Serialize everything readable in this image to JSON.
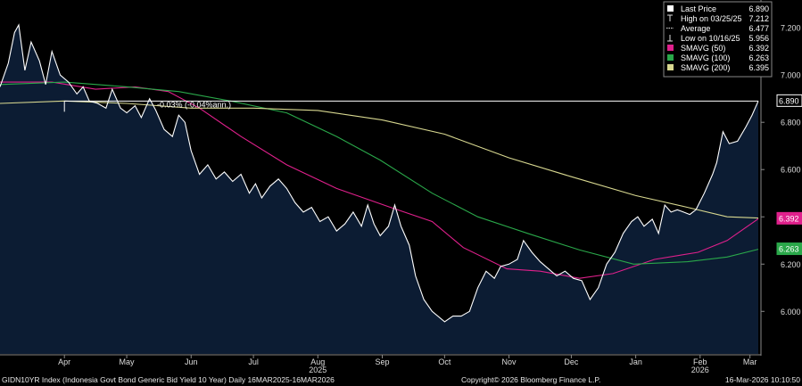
{
  "footer": {
    "left": "GIDN10YR Index (Indonesia Govt Bond Generic Bid Yield 10 Year) Daily 16MAR2025-16MAR2026",
    "center": "Copyright© 2026 Bloomberg Finance L.P.",
    "right": "16-Mar-2026 10:10:50"
  },
  "colors": {
    "background": "#000000",
    "area_fill": "#0c1c33",
    "price_line": "#ffffff",
    "sma50": "#e0208c",
    "sma100": "#2aa84a",
    "sma200": "#d8d890",
    "axis_text": "#dddddd",
    "panel_border": "#888888"
  },
  "legend": {
    "items": [
      {
        "icon": "square-white-icon",
        "label": "Last Price",
        "value": "6.890"
      },
      {
        "icon": "high-marker-icon",
        "label": "High on 03/25/25",
        "value": "7.212"
      },
      {
        "icon": "average-line-icon",
        "label": "Average",
        "value": "6.477"
      },
      {
        "icon": "low-marker-icon",
        "label": "Low on 10/16/25",
        "value": "5.956"
      },
      {
        "icon": "square-magenta-icon",
        "label": "SMAVG (50)",
        "value": "6.392"
      },
      {
        "icon": "square-green-icon",
        "label": "SMAVG (100)",
        "value": "6.263"
      },
      {
        "icon": "square-yellow-icon",
        "label": "SMAVG (200)",
        "value": "6.395"
      }
    ]
  },
  "annotation": {
    "text": "-0.03% (-0.04%ann.)"
  },
  "chart_data": {
    "type": "line",
    "title": "",
    "xlabel": "",
    "ylabel": "",
    "x_range": [
      "2025-03-16",
      "2026-03-16"
    ],
    "ylim": [
      5.82,
      7.31
    ],
    "y_ticks": [
      6.0,
      6.2,
      6.4,
      6.6,
      6.8,
      7.0,
      7.2
    ],
    "y_tick_labels": [
      "6.000",
      "6.200",
      "6.400",
      "6.600",
      "6.800",
      "7.000",
      "7.200"
    ],
    "x_ticks": [
      {
        "date": "2025-04-16",
        "label": "Apr"
      },
      {
        "date": "2025-05-16",
        "label": "May"
      },
      {
        "date": "2025-06-16",
        "label": "Jun"
      },
      {
        "date": "2025-07-16",
        "label": "Jul"
      },
      {
        "date": "2025-08-16",
        "label": "Aug"
      },
      {
        "date": "2025-09-16",
        "label": "Sep"
      },
      {
        "date": "2025-10-16",
        "label": "Oct"
      },
      {
        "date": "2025-11-16",
        "label": "Nov"
      },
      {
        "date": "2025-12-16",
        "label": "Dec"
      },
      {
        "date": "2026-01-16",
        "label": "Jan"
      },
      {
        "date": "2026-02-16",
        "label": "Feb"
      },
      {
        "date": "2026-03-12",
        "label": "Mar"
      }
    ],
    "year_labels": [
      {
        "date": "2025-08-16",
        "label": "2025"
      },
      {
        "date": "2026-02-16",
        "label": "2026"
      }
    ],
    "grid": false,
    "legend_position": "top-right",
    "right_axis_value_labels": [
      {
        "value": 6.89,
        "label": "6.890",
        "series": "Last Price"
      },
      {
        "value": 6.392,
        "label": "6.392",
        "series": "SMAVG (50)"
      },
      {
        "value": 6.263,
        "label": "6.263",
        "series": "SMAVG (100)"
      }
    ],
    "reference_line": {
      "from_date": "2025-04-16",
      "to_date": "2026-03-16",
      "value": 6.89
    },
    "series": [
      {
        "name": "Last Price",
        "style": "area",
        "points": [
          [
            "2025-03-16",
            6.95
          ],
          [
            "2025-03-20",
            7.05
          ],
          [
            "2025-03-23",
            7.18
          ],
          [
            "2025-03-25",
            7.212
          ],
          [
            "2025-03-28",
            7.02
          ],
          [
            "2025-03-31",
            7.14
          ],
          [
            "2025-04-04",
            7.06
          ],
          [
            "2025-04-07",
            6.96
          ],
          [
            "2025-04-10",
            7.1
          ],
          [
            "2025-04-14",
            7.0
          ],
          [
            "2025-04-18",
            6.97
          ],
          [
            "2025-04-22",
            6.92
          ],
          [
            "2025-04-25",
            6.95
          ],
          [
            "2025-04-28",
            6.89
          ],
          [
            "2025-05-02",
            6.88
          ],
          [
            "2025-05-06",
            6.86
          ],
          [
            "2025-05-09",
            6.94
          ],
          [
            "2025-05-13",
            6.86
          ],
          [
            "2025-05-16",
            6.84
          ],
          [
            "2025-05-20",
            6.87
          ],
          [
            "2025-05-23",
            6.82
          ],
          [
            "2025-05-27",
            6.9
          ],
          [
            "2025-05-30",
            6.85
          ],
          [
            "2025-06-03",
            6.77
          ],
          [
            "2025-06-07",
            6.74
          ],
          [
            "2025-06-10",
            6.83
          ],
          [
            "2025-06-13",
            6.8
          ],
          [
            "2025-06-16",
            6.68
          ],
          [
            "2025-06-20",
            6.58
          ],
          [
            "2025-06-24",
            6.62
          ],
          [
            "2025-06-28",
            6.56
          ],
          [
            "2025-07-02",
            6.59
          ],
          [
            "2025-07-06",
            6.55
          ],
          [
            "2025-07-10",
            6.58
          ],
          [
            "2025-07-14",
            6.5
          ],
          [
            "2025-07-17",
            6.54
          ],
          [
            "2025-07-20",
            6.48
          ],
          [
            "2025-07-24",
            6.53
          ],
          [
            "2025-07-28",
            6.56
          ],
          [
            "2025-08-01",
            6.52
          ],
          [
            "2025-08-05",
            6.46
          ],
          [
            "2025-08-09",
            6.42
          ],
          [
            "2025-08-13",
            6.44
          ],
          [
            "2025-08-17",
            6.38
          ],
          [
            "2025-08-21",
            6.4
          ],
          [
            "2025-08-25",
            6.34
          ],
          [
            "2025-08-29",
            6.37
          ],
          [
            "2025-09-02",
            6.42
          ],
          [
            "2025-09-06",
            6.36
          ],
          [
            "2025-09-09",
            6.45
          ],
          [
            "2025-09-12",
            6.37
          ],
          [
            "2025-09-15",
            6.32
          ],
          [
            "2025-09-19",
            6.36
          ],
          [
            "2025-09-22",
            6.45
          ],
          [
            "2025-09-25",
            6.36
          ],
          [
            "2025-09-29",
            6.28
          ],
          [
            "2025-10-02",
            6.15
          ],
          [
            "2025-10-06",
            6.05
          ],
          [
            "2025-10-10",
            6.0
          ],
          [
            "2025-10-16",
            5.956
          ],
          [
            "2025-10-20",
            5.98
          ],
          [
            "2025-10-24",
            5.98
          ],
          [
            "2025-10-28",
            6.0
          ],
          [
            "2025-11-01",
            6.1
          ],
          [
            "2025-11-05",
            6.17
          ],
          [
            "2025-11-09",
            6.14
          ],
          [
            "2025-11-12",
            6.19
          ],
          [
            "2025-11-16",
            6.2
          ],
          [
            "2025-11-20",
            6.22
          ],
          [
            "2025-11-23",
            6.3
          ],
          [
            "2025-11-27",
            6.25
          ],
          [
            "2025-12-01",
            6.21
          ],
          [
            "2025-12-05",
            6.18
          ],
          [
            "2025-12-09",
            6.15
          ],
          [
            "2025-12-13",
            6.17
          ],
          [
            "2025-12-17",
            6.14
          ],
          [
            "2025-12-21",
            6.13
          ],
          [
            "2025-12-25",
            6.05
          ],
          [
            "2025-12-29",
            6.1
          ],
          [
            "2026-01-02",
            6.2
          ],
          [
            "2026-01-06",
            6.25
          ],
          [
            "2026-01-10",
            6.33
          ],
          [
            "2026-01-14",
            6.38
          ],
          [
            "2026-01-17",
            6.4
          ],
          [
            "2026-01-20",
            6.36
          ],
          [
            "2026-01-24",
            6.39
          ],
          [
            "2026-01-27",
            6.33
          ],
          [
            "2026-01-30",
            6.45
          ],
          [
            "2026-02-02",
            6.42
          ],
          [
            "2026-02-05",
            6.43
          ],
          [
            "2026-02-08",
            6.42
          ],
          [
            "2026-02-11",
            6.41
          ],
          [
            "2026-02-14",
            6.43
          ],
          [
            "2026-02-18",
            6.5
          ],
          [
            "2026-02-22",
            6.58
          ],
          [
            "2026-02-24",
            6.63
          ],
          [
            "2026-02-27",
            6.76
          ],
          [
            "2026-03-02",
            6.71
          ],
          [
            "2026-03-06",
            6.72
          ],
          [
            "2026-03-10",
            6.78
          ],
          [
            "2026-03-13",
            6.83
          ],
          [
            "2026-03-16",
            6.89
          ]
        ]
      },
      {
        "name": "SMAVG (50)",
        "points": [
          [
            "2025-03-16",
            6.97
          ],
          [
            "2025-04-10",
            6.97
          ],
          [
            "2025-05-01",
            6.94
          ],
          [
            "2025-05-20",
            6.95
          ],
          [
            "2025-06-05",
            6.93
          ],
          [
            "2025-06-20",
            6.86
          ],
          [
            "2025-07-10",
            6.74
          ],
          [
            "2025-08-01",
            6.62
          ],
          [
            "2025-08-25",
            6.52
          ],
          [
            "2025-09-20",
            6.44
          ],
          [
            "2025-10-10",
            6.38
          ],
          [
            "2025-10-25",
            6.27
          ],
          [
            "2025-11-15",
            6.18
          ],
          [
            "2025-12-01",
            6.17
          ],
          [
            "2025-12-20",
            6.14
          ],
          [
            "2026-01-05",
            6.16
          ],
          [
            "2026-01-25",
            6.22
          ],
          [
            "2026-02-15",
            6.25
          ],
          [
            "2026-03-01",
            6.3
          ],
          [
            "2026-03-16",
            6.392
          ]
        ]
      },
      {
        "name": "SMAVG (100)",
        "points": [
          [
            "2025-03-16",
            6.96
          ],
          [
            "2025-04-16",
            6.97
          ],
          [
            "2025-05-16",
            6.95
          ],
          [
            "2025-06-10",
            6.93
          ],
          [
            "2025-07-05",
            6.89
          ],
          [
            "2025-08-01",
            6.84
          ],
          [
            "2025-08-25",
            6.74
          ],
          [
            "2025-09-15",
            6.64
          ],
          [
            "2025-10-10",
            6.5
          ],
          [
            "2025-11-01",
            6.4
          ],
          [
            "2025-11-25",
            6.33
          ],
          [
            "2025-12-20",
            6.26
          ],
          [
            "2026-01-15",
            6.2
          ],
          [
            "2026-02-10",
            6.21
          ],
          [
            "2026-03-01",
            6.23
          ],
          [
            "2026-03-16",
            6.263
          ]
        ]
      },
      {
        "name": "SMAVG (200)",
        "points": [
          [
            "2025-03-16",
            6.88
          ],
          [
            "2025-04-16",
            6.89
          ],
          [
            "2025-05-16",
            6.88
          ],
          [
            "2025-06-16",
            6.86
          ],
          [
            "2025-07-16",
            6.86
          ],
          [
            "2025-08-16",
            6.85
          ],
          [
            "2025-09-16",
            6.81
          ],
          [
            "2025-10-16",
            6.75
          ],
          [
            "2025-11-16",
            6.65
          ],
          [
            "2025-12-16",
            6.57
          ],
          [
            "2026-01-16",
            6.49
          ],
          [
            "2026-02-10",
            6.44
          ],
          [
            "2026-03-01",
            6.4
          ],
          [
            "2026-03-16",
            6.395
          ]
        ]
      }
    ]
  }
}
